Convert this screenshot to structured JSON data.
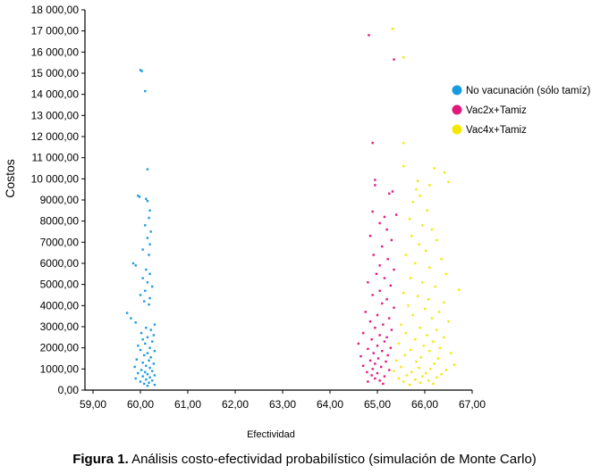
{
  "caption": {
    "label": "Figura 1.",
    "text": " Análisis costo-efectividad probabilístico (simulación de Monte Carlo)"
  },
  "chart_data": {
    "type": "scatter",
    "xlabel": "Efectividad",
    "ylabel": "Costos",
    "xlim": [
      59,
      67
    ],
    "ylim": [
      0,
      18000
    ],
    "x_ticks": [
      "59,00",
      "60,00",
      "61,00",
      "62,00",
      "63,00",
      "64,00",
      "65,00",
      "66,00",
      "67,00"
    ],
    "x_tick_values": [
      59,
      60,
      61,
      62,
      63,
      64,
      65,
      66,
      67
    ],
    "y_ticks": [
      "0,00",
      "1000,00",
      "2000,00",
      "3000,00",
      "4000,00",
      "5000,00",
      "6000,00",
      "7000,00",
      "8000,00",
      "9000,00",
      "10 000,00",
      "11 000,00",
      "12 000,00",
      "13 000,00",
      "14 000,00",
      "15 000,00",
      "16 000,00",
      "17 000,00",
      "18 000,00"
    ],
    "y_tick_values": [
      0,
      1000,
      2000,
      3000,
      4000,
      5000,
      6000,
      7000,
      8000,
      9000,
      10000,
      11000,
      12000,
      13000,
      14000,
      15000,
      16000,
      17000,
      18000
    ],
    "grid": false,
    "legend": "right",
    "series": [
      {
        "name": "No vacunación (sólo tamíz)",
        "color": "#1a9be0",
        "points": [
          [
            60.0,
            15150
          ],
          [
            60.03,
            15100
          ],
          [
            60.1,
            14150
          ],
          [
            60.15,
            10450
          ],
          [
            59.95,
            9200
          ],
          [
            59.98,
            9150
          ],
          [
            60.12,
            9050
          ],
          [
            60.15,
            8950
          ],
          [
            60.2,
            8500
          ],
          [
            60.18,
            8150
          ],
          [
            60.1,
            7800
          ],
          [
            60.22,
            7500
          ],
          [
            60.15,
            7200
          ],
          [
            60.2,
            6900
          ],
          [
            60.05,
            6650
          ],
          [
            60.18,
            6400
          ],
          [
            59.85,
            6000
          ],
          [
            59.9,
            5900
          ],
          [
            60.12,
            5700
          ],
          [
            60.2,
            5500
          ],
          [
            60.05,
            5300
          ],
          [
            60.15,
            5100
          ],
          [
            60.25,
            4900
          ],
          [
            60.1,
            4700
          ],
          [
            60.0,
            4500
          ],
          [
            60.2,
            4350
          ],
          [
            60.08,
            4200
          ],
          [
            60.18,
            4050
          ],
          [
            59.72,
            3650
          ],
          [
            59.8,
            3400
          ],
          [
            59.9,
            3200
          ],
          [
            60.3,
            3100
          ],
          [
            60.12,
            2950
          ],
          [
            60.22,
            2850
          ],
          [
            60.02,
            2700
          ],
          [
            60.28,
            2600
          ],
          [
            60.15,
            2500
          ],
          [
            60.05,
            2400
          ],
          [
            60.25,
            2300
          ],
          [
            60.1,
            2200
          ],
          [
            59.95,
            2100
          ],
          [
            60.2,
            2000
          ],
          [
            60.0,
            1900
          ],
          [
            60.3,
            1850
          ],
          [
            60.15,
            1750
          ],
          [
            60.08,
            1650
          ],
          [
            60.22,
            1550
          ],
          [
            59.92,
            1450
          ],
          [
            60.18,
            1400
          ],
          [
            60.05,
            1300
          ],
          [
            60.28,
            1250
          ],
          [
            60.12,
            1150
          ],
          [
            59.88,
            1100
          ],
          [
            60.2,
            1050
          ],
          [
            60.02,
            950
          ],
          [
            60.25,
            900
          ],
          [
            60.1,
            850
          ],
          [
            59.95,
            800
          ],
          [
            60.15,
            750
          ],
          [
            60.3,
            700
          ],
          [
            60.05,
            650
          ],
          [
            60.2,
            600
          ],
          [
            59.9,
            550
          ],
          [
            60.12,
            500
          ],
          [
            60.25,
            450
          ],
          [
            60.0,
            400
          ],
          [
            60.18,
            350
          ],
          [
            60.08,
            300
          ],
          [
            60.3,
            250
          ],
          [
            60.15,
            200
          ]
        ]
      },
      {
        "name": "Vac2x+Tamiz",
        "color": "#e0197d",
        "points": [
          [
            64.82,
            16800
          ],
          [
            65.35,
            15650
          ],
          [
            64.9,
            11700
          ],
          [
            64.95,
            9950
          ],
          [
            64.95,
            9700
          ],
          [
            65.32,
            9400
          ],
          [
            65.25,
            9300
          ],
          [
            64.9,
            8450
          ],
          [
            65.15,
            8200
          ],
          [
            65.4,
            8300
          ],
          [
            65.05,
            7900
          ],
          [
            65.2,
            7600
          ],
          [
            64.85,
            7300
          ],
          [
            65.3,
            7100
          ],
          [
            65.1,
            6800
          ],
          [
            64.92,
            6400
          ],
          [
            65.22,
            6200
          ],
          [
            65.05,
            5900
          ],
          [
            65.35,
            5700
          ],
          [
            64.98,
            5500
          ],
          [
            65.15,
            5300
          ],
          [
            64.8,
            5100
          ],
          [
            65.28,
            4950
          ],
          [
            65.05,
            4700
          ],
          [
            64.9,
            4500
          ],
          [
            65.2,
            4300
          ],
          [
            65.1,
            4100
          ],
          [
            65.35,
            3900
          ],
          [
            64.75,
            3700
          ],
          [
            65.0,
            3550
          ],
          [
            65.25,
            3400
          ],
          [
            64.85,
            3250
          ],
          [
            65.12,
            3100
          ],
          [
            64.95,
            2950
          ],
          [
            65.3,
            2850
          ],
          [
            64.7,
            2700
          ],
          [
            65.05,
            2600
          ],
          [
            65.2,
            2500
          ],
          [
            64.88,
            2400
          ],
          [
            65.15,
            2300
          ],
          [
            64.6,
            2200
          ],
          [
            65.0,
            2100
          ],
          [
            65.28,
            2000
          ],
          [
            64.8,
            1950
          ],
          [
            65.1,
            1850
          ],
          [
            64.92,
            1750
          ],
          [
            65.22,
            1650
          ],
          [
            64.65,
            1600
          ],
          [
            65.02,
            1500
          ],
          [
            64.85,
            1400
          ],
          [
            65.18,
            1350
          ],
          [
            64.95,
            1250
          ],
          [
            64.7,
            1150
          ],
          [
            65.08,
            1100
          ],
          [
            64.9,
            1000
          ],
          [
            65.25,
            950
          ],
          [
            64.78,
            850
          ],
          [
            65.0,
            800
          ],
          [
            64.88,
            700
          ],
          [
            65.15,
            650
          ],
          [
            64.95,
            550
          ],
          [
            65.05,
            450
          ],
          [
            64.8,
            400
          ],
          [
            65.12,
            300
          ]
        ]
      },
      {
        "name": "Vac4x+Tamiz",
        "color": "#f5e800",
        "points": [
          [
            65.32,
            17100
          ],
          [
            65.55,
            15750
          ],
          [
            65.55,
            11700
          ],
          [
            65.55,
            10600
          ],
          [
            66.2,
            10500
          ],
          [
            66.42,
            10300
          ],
          [
            65.85,
            9900
          ],
          [
            66.5,
            9850
          ],
          [
            65.82,
            9500
          ],
          [
            66.1,
            9700
          ],
          [
            65.9,
            9200
          ],
          [
            65.75,
            8900
          ],
          [
            66.05,
            8500
          ],
          [
            65.68,
            8100
          ],
          [
            65.95,
            7800
          ],
          [
            66.15,
            7600
          ],
          [
            65.72,
            7300
          ],
          [
            66.25,
            7100
          ],
          [
            65.88,
            6900
          ],
          [
            66.02,
            6600
          ],
          [
            65.6,
            6400
          ],
          [
            66.35,
            6200
          ],
          [
            65.8,
            6000
          ],
          [
            66.1,
            5800
          ],
          [
            66.45,
            5500
          ],
          [
            65.7,
            5300
          ],
          [
            65.95,
            5100
          ],
          [
            66.22,
            4900
          ],
          [
            66.72,
            4750
          ],
          [
            65.55,
            4600
          ],
          [
            65.85,
            4450
          ],
          [
            66.08,
            4300
          ],
          [
            66.4,
            4150
          ],
          [
            65.65,
            4000
          ],
          [
            66.0,
            3850
          ],
          [
            66.3,
            3700
          ],
          [
            65.75,
            3550
          ],
          [
            66.15,
            3400
          ],
          [
            66.5,
            3250
          ],
          [
            65.5,
            3100
          ],
          [
            65.9,
            2950
          ],
          [
            66.25,
            2850
          ],
          [
            65.6,
            2700
          ],
          [
            66.05,
            2600
          ],
          [
            66.4,
            2500
          ],
          [
            65.8,
            2400
          ],
          [
            66.18,
            2300
          ],
          [
            65.45,
            2200
          ],
          [
            65.98,
            2100
          ],
          [
            66.32,
            2000
          ],
          [
            65.7,
            1900
          ],
          [
            66.1,
            1850
          ],
          [
            66.55,
            1750
          ],
          [
            65.58,
            1650
          ],
          [
            65.92,
            1550
          ],
          [
            66.28,
            1500
          ],
          [
            65.4,
            1400
          ],
          [
            65.82,
            1350
          ],
          [
            66.2,
            1250
          ],
          [
            66.62,
            1200
          ],
          [
            65.5,
            1100
          ],
          [
            65.88,
            1050
          ],
          [
            66.12,
            1000
          ],
          [
            66.45,
            950
          ],
          [
            65.35,
            900
          ],
          [
            65.72,
            850
          ],
          [
            66.02,
            800
          ],
          [
            66.35,
            750
          ],
          [
            65.62,
            700
          ],
          [
            65.95,
            650
          ],
          [
            66.25,
            600
          ],
          [
            65.45,
            550
          ],
          [
            65.8,
            500
          ],
          [
            66.08,
            450
          ],
          [
            65.55,
            400
          ],
          [
            65.9,
            350
          ],
          [
            66.18,
            300
          ],
          [
            65.68,
            250
          ]
        ]
      }
    ]
  }
}
